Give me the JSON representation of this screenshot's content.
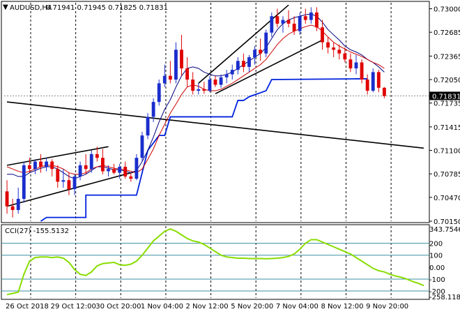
{
  "header": {
    "symbol": "AUDUSD,H4",
    "ohlc": "0.71941 0.71945 0.71825 0.71831"
  },
  "colors": {
    "up_candle": "#1a2ecc",
    "down_candle": "#e00000",
    "price_line": "#000000",
    "trend_line": "#000000",
    "channel_blue": "#0022dd",
    "ma_dark": "#000080",
    "ma_red": "#cc0000",
    "cci_line": "#88dd00",
    "cci_level": "#3b8fa0",
    "grid": "#000000"
  },
  "chart_data": [
    {
      "type": "line",
      "title": "",
      "price_scale": {
        "ylim": [
          0.7015,
          0.7308
        ],
        "tick_labels": [
          "0.73000",
          "0.72685",
          "0.72365",
          "0.72050",
          "0.71735",
          "0.71415",
          "0.71100",
          "0.70785",
          "0.70470",
          "0.70150"
        ],
        "tick_values": [
          0.73,
          0.72685,
          0.72365,
          0.7205,
          0.71735,
          0.71415,
          0.711,
          0.70785,
          0.7047,
          0.7015
        ],
        "current_price_label": "0.71831",
        "current_price": 0.71831
      },
      "time_axis": {
        "labels": [
          "26 Oct 2018",
          "29 Oct 12:00",
          "30 Oct 20:00",
          "1 Nov 04:00",
          "2 Nov 12:00",
          "5 Nov 20:00",
          "7 Nov 04:00",
          "8 Nov 12:00",
          "9 Nov 20:00"
        ],
        "bar_index": [
          0,
          8,
          16,
          24,
          32,
          40,
          48,
          56,
          64
        ]
      },
      "candles": [
        {
          "o": 0.7055,
          "h": 0.707,
          "l": 0.7025,
          "c": 0.7035
        },
        {
          "o": 0.7035,
          "h": 0.7045,
          "l": 0.702,
          "c": 0.703
        },
        {
          "o": 0.703,
          "h": 0.706,
          "l": 0.7025,
          "c": 0.7045
        },
        {
          "o": 0.7045,
          "h": 0.7095,
          "l": 0.704,
          "c": 0.709
        },
        {
          "o": 0.709,
          "h": 0.71,
          "l": 0.708,
          "c": 0.7085
        },
        {
          "o": 0.7085,
          "h": 0.7098,
          "l": 0.7078,
          "c": 0.7095
        },
        {
          "o": 0.7095,
          "h": 0.7105,
          "l": 0.708,
          "c": 0.7088
        },
        {
          "o": 0.7088,
          "h": 0.71,
          "l": 0.7082,
          "c": 0.7095
        },
        {
          "o": 0.7095,
          "h": 0.7098,
          "l": 0.7075,
          "c": 0.7085
        },
        {
          "o": 0.7085,
          "h": 0.709,
          "l": 0.706,
          "c": 0.7068
        },
        {
          "o": 0.7068,
          "h": 0.7085,
          "l": 0.706,
          "c": 0.707
        },
        {
          "o": 0.707,
          "h": 0.708,
          "l": 0.705,
          "c": 0.7058
        },
        {
          "o": 0.7058,
          "h": 0.7078,
          "l": 0.705,
          "c": 0.7075
        },
        {
          "o": 0.7075,
          "h": 0.7095,
          "l": 0.707,
          "c": 0.709
        },
        {
          "o": 0.709,
          "h": 0.7105,
          "l": 0.7078,
          "c": 0.7085
        },
        {
          "o": 0.7085,
          "h": 0.711,
          "l": 0.708,
          "c": 0.7105
        },
        {
          "o": 0.7105,
          "h": 0.7115,
          "l": 0.7095,
          "c": 0.71
        },
        {
          "o": 0.71,
          "h": 0.7112,
          "l": 0.7078,
          "c": 0.7082
        },
        {
          "o": 0.7082,
          "h": 0.709,
          "l": 0.7075,
          "c": 0.7085
        },
        {
          "o": 0.7085,
          "h": 0.7092,
          "l": 0.7078,
          "c": 0.708
        },
        {
          "o": 0.708,
          "h": 0.7092,
          "l": 0.7072,
          "c": 0.7088
        },
        {
          "o": 0.7088,
          "h": 0.7095,
          "l": 0.7072,
          "c": 0.7075
        },
        {
          "o": 0.7075,
          "h": 0.708,
          "l": 0.7068,
          "c": 0.7072
        },
        {
          "o": 0.7072,
          "h": 0.7105,
          "l": 0.707,
          "c": 0.71
        },
        {
          "o": 0.71,
          "h": 0.7135,
          "l": 0.7095,
          "c": 0.713
        },
        {
          "o": 0.713,
          "h": 0.716,
          "l": 0.7125,
          "c": 0.7155
        },
        {
          "o": 0.7155,
          "h": 0.718,
          "l": 0.7148,
          "c": 0.7175
        },
        {
          "o": 0.7175,
          "h": 0.7205,
          "l": 0.717,
          "c": 0.72
        },
        {
          "o": 0.72,
          "h": 0.7225,
          "l": 0.7195,
          "c": 0.721
        },
        {
          "o": 0.721,
          "h": 0.723,
          "l": 0.72,
          "c": 0.7205
        },
        {
          "o": 0.7205,
          "h": 0.7255,
          "l": 0.72,
          "c": 0.7245
        },
        {
          "o": 0.7245,
          "h": 0.7265,
          "l": 0.721,
          "c": 0.722
        },
        {
          "o": 0.722,
          "h": 0.7235,
          "l": 0.7195,
          "c": 0.7205
        },
        {
          "o": 0.7205,
          "h": 0.7215,
          "l": 0.7185,
          "c": 0.719
        },
        {
          "o": 0.719,
          "h": 0.72,
          "l": 0.7185,
          "c": 0.7192
        },
        {
          "o": 0.7192,
          "h": 0.7202,
          "l": 0.7186,
          "c": 0.719
        },
        {
          "o": 0.719,
          "h": 0.721,
          "l": 0.7188,
          "c": 0.7205
        },
        {
          "o": 0.7205,
          "h": 0.721,
          "l": 0.7195,
          "c": 0.7198
        },
        {
          "o": 0.7198,
          "h": 0.7212,
          "l": 0.7194,
          "c": 0.7208
        },
        {
          "o": 0.7208,
          "h": 0.7218,
          "l": 0.72,
          "c": 0.7212
        },
        {
          "o": 0.7212,
          "h": 0.7225,
          "l": 0.7205,
          "c": 0.7218
        },
        {
          "o": 0.7218,
          "h": 0.7235,
          "l": 0.7212,
          "c": 0.723
        },
        {
          "o": 0.723,
          "h": 0.724,
          "l": 0.7215,
          "c": 0.7222
        },
        {
          "o": 0.7222,
          "h": 0.7238,
          "l": 0.7215,
          "c": 0.7235
        },
        {
          "o": 0.7235,
          "h": 0.725,
          "l": 0.7225,
          "c": 0.7245
        },
        {
          "o": 0.7245,
          "h": 0.726,
          "l": 0.723,
          "c": 0.724
        },
        {
          "o": 0.724,
          "h": 0.7272,
          "l": 0.7235,
          "c": 0.7268
        },
        {
          "o": 0.7268,
          "h": 0.7295,
          "l": 0.7262,
          "c": 0.729
        },
        {
          "o": 0.729,
          "h": 0.73,
          "l": 0.7275,
          "c": 0.728
        },
        {
          "o": 0.728,
          "h": 0.729,
          "l": 0.7268,
          "c": 0.7285
        },
        {
          "o": 0.7285,
          "h": 0.7298,
          "l": 0.7275,
          "c": 0.728
        },
        {
          "o": 0.728,
          "h": 0.729,
          "l": 0.7265,
          "c": 0.727
        },
        {
          "o": 0.727,
          "h": 0.7295,
          "l": 0.7265,
          "c": 0.729
        },
        {
          "o": 0.729,
          "h": 0.73,
          "l": 0.728,
          "c": 0.7285
        },
        {
          "o": 0.7285,
          "h": 0.7302,
          "l": 0.728,
          "c": 0.7295
        },
        {
          "o": 0.7295,
          "h": 0.7302,
          "l": 0.727,
          "c": 0.7275
        },
        {
          "o": 0.7275,
          "h": 0.7285,
          "l": 0.7245,
          "c": 0.7255
        },
        {
          "o": 0.7255,
          "h": 0.7262,
          "l": 0.724,
          "c": 0.7248
        },
        {
          "o": 0.7248,
          "h": 0.7255,
          "l": 0.7235,
          "c": 0.7245
        },
        {
          "o": 0.7245,
          "h": 0.7252,
          "l": 0.7232,
          "c": 0.724
        },
        {
          "o": 0.724,
          "h": 0.7248,
          "l": 0.7228,
          "c": 0.7232
        },
        {
          "o": 0.7232,
          "h": 0.724,
          "l": 0.7215,
          "c": 0.722
        },
        {
          "o": 0.722,
          "h": 0.7238,
          "l": 0.7212,
          "c": 0.7228
        },
        {
          "o": 0.7228,
          "h": 0.7232,
          "l": 0.72,
          "c": 0.7205
        },
        {
          "o": 0.7205,
          "h": 0.7212,
          "l": 0.7185,
          "c": 0.719
        },
        {
          "o": 0.719,
          "h": 0.722,
          "l": 0.7188,
          "c": 0.7215
        },
        {
          "o": 0.7215,
          "h": 0.7218,
          "l": 0.7188,
          "c": 0.7194
        },
        {
          "o": 0.7194,
          "h": 0.7195,
          "l": 0.718,
          "c": 0.7183
        }
      ],
      "trend_lines": [
        {
          "from": {
            "bar": 0,
            "price": 0.7035
          },
          "to": {
            "bar": 23,
            "price": 0.7082
          }
        },
        {
          "from": {
            "bar": 0,
            "price": 0.709
          },
          "to": {
            "bar": 18,
            "price": 0.7115
          }
        },
        {
          "from": {
            "bar": 34,
            "price": 0.72
          },
          "to": {
            "bar": 50,
            "price": 0.7305
          }
        },
        {
          "from": {
            "bar": 37,
            "price": 0.7186
          },
          "to": {
            "bar": 56,
            "price": 0.7258
          }
        },
        {
          "from": {
            "bar": 0,
            "price": 0.7175
          },
          "to": {
            "bar": 74,
            "price": 0.7113
          }
        }
      ],
      "channel_line": [
        {
          "bar": 6,
          "price": 0.7015
        },
        {
          "bar": 7,
          "price": 0.702
        },
        {
          "bar": 14,
          "price": 0.702
        },
        {
          "bar": 14,
          "price": 0.705
        },
        {
          "bar": 22,
          "price": 0.705
        },
        {
          "bar": 23,
          "price": 0.705
        },
        {
          "bar": 25,
          "price": 0.711
        },
        {
          "bar": 27,
          "price": 0.713
        },
        {
          "bar": 28,
          "price": 0.713
        },
        {
          "bar": 29,
          "price": 0.7155
        },
        {
          "bar": 40,
          "price": 0.7155
        },
        {
          "bar": 41,
          "price": 0.7177
        },
        {
          "bar": 42,
          "price": 0.7177
        },
        {
          "bar": 43,
          "price": 0.7182
        },
        {
          "bar": 46,
          "price": 0.719
        },
        {
          "bar": 47,
          "price": 0.7205
        },
        {
          "bar": 62,
          "price": 0.7206
        },
        {
          "bar": 64,
          "price": 0.7206
        }
      ],
      "ma_dark": [
        0.7078,
        0.7078,
        0.7075,
        0.7075,
        0.708,
        0.7083,
        0.7086,
        0.7088,
        0.7088,
        0.7085,
        0.708,
        0.7075,
        0.7072,
        0.7075,
        0.7078,
        0.7083,
        0.7088,
        0.7088,
        0.7086,
        0.7084,
        0.7084,
        0.7082,
        0.708,
        0.7083,
        0.7095,
        0.711,
        0.7128,
        0.7148,
        0.7165,
        0.7178,
        0.7195,
        0.721,
        0.722,
        0.7222,
        0.722,
        0.7215,
        0.7212,
        0.721,
        0.721,
        0.7212,
        0.7215,
        0.722,
        0.7225,
        0.723,
        0.7235,
        0.724,
        0.7248,
        0.726,
        0.7272,
        0.728,
        0.7285,
        0.7288,
        0.729,
        0.7292,
        0.7293,
        0.729,
        0.7282,
        0.7272,
        0.7265,
        0.7258,
        0.725,
        0.7245,
        0.7242,
        0.7238,
        0.7232,
        0.7228,
        0.7222,
        0.7215
      ],
      "ma_red": [
        0.7088,
        0.7085,
        0.7082,
        0.708,
        0.7082,
        0.7085,
        0.7088,
        0.709,
        0.709,
        0.7088,
        0.7085,
        0.708,
        0.7078,
        0.7078,
        0.708,
        0.7085,
        0.7088,
        0.709,
        0.7088,
        0.7086,
        0.7085,
        0.7084,
        0.7082,
        0.708,
        0.7085,
        0.7098,
        0.7112,
        0.713,
        0.7145,
        0.716,
        0.7172,
        0.7185,
        0.7195,
        0.7198,
        0.7196,
        0.7192,
        0.719,
        0.719,
        0.7192,
        0.7196,
        0.72,
        0.7205,
        0.721,
        0.7215,
        0.722,
        0.7225,
        0.7232,
        0.7242,
        0.7252,
        0.726,
        0.7266,
        0.727,
        0.7273,
        0.7276,
        0.7278,
        0.7276,
        0.727,
        0.7262,
        0.7255,
        0.725,
        0.7246,
        0.7242,
        0.7239,
        0.7236,
        0.7232,
        0.7228,
        0.7225,
        0.722
      ]
    },
    {
      "type": "line",
      "title": "CCI(27) -155.5132",
      "ylim": [
        -258.1185,
        343.7546
      ],
      "tick_labels": [
        "343.7546",
        "200",
        "100",
        "0.00",
        "-100",
        "-200",
        "-258.1185"
      ],
      "tick_values": [
        343.7546,
        200,
        100,
        0,
        -100,
        -200,
        -258.1185
      ],
      "levels": [
        200,
        100,
        -100,
        -200
      ],
      "values": [
        -230,
        -220,
        -210,
        -60,
        50,
        80,
        85,
        85,
        80,
        85,
        75,
        40,
        -20,
        -60,
        -70,
        -40,
        10,
        30,
        35,
        40,
        20,
        15,
        25,
        50,
        100,
        160,
        220,
        260,
        300,
        320,
        300,
        270,
        240,
        220,
        210,
        190,
        160,
        130,
        100,
        85,
        80,
        75,
        75,
        72,
        72,
        72,
        70,
        72,
        75,
        80,
        90,
        110,
        150,
        200,
        230,
        230,
        210,
        190,
        170,
        150,
        130,
        110,
        80,
        50,
        20,
        -10,
        -30,
        -40,
        -60,
        -75,
        -85,
        -100,
        -120,
        -135,
        -155
      ]
    }
  ]
}
